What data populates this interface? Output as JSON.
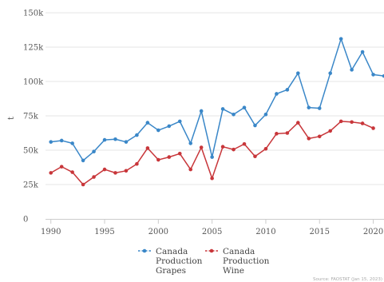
{
  "chart_data": {
    "type": "line",
    "title": "",
    "xlabel": "",
    "ylabel": "t",
    "xlim": [
      1989.5,
      2021
    ],
    "ylim": [
      0,
      150000
    ],
    "grid": true,
    "legend_position": "bottom",
    "x_ticks": [
      1990,
      1995,
      2000,
      2005,
      2010,
      2015,
      2020
    ],
    "y_ticks": [
      0,
      25000,
      50000,
      75000,
      100000,
      125000,
      150000
    ],
    "x_tick_labels": [
      "1990",
      "1995",
      "2000",
      "2005",
      "2010",
      "2015",
      "2020"
    ],
    "y_tick_labels": [
      "0",
      "25k",
      "50k",
      "75k",
      "100k",
      "125k",
      "150k"
    ],
    "x": [
      1990,
      1991,
      1992,
      1993,
      1994,
      1995,
      1996,
      1997,
      1998,
      1999,
      2000,
      2001,
      2002,
      2003,
      2004,
      2005,
      2006,
      2007,
      2008,
      2009,
      2010,
      2011,
      2012,
      2013,
      2014,
      2015,
      2016,
      2017,
      2018,
      2019,
      2020,
      2021
    ],
    "series": [
      {
        "name": "Canada Production Grapes",
        "label_lines": [
          "Canada",
          "Production",
          "Grapes"
        ],
        "color": "#3a87c8",
        "values": [
          56000,
          57000,
          55000,
          42500,
          49000,
          57500,
          58000,
          56000,
          61000,
          70000,
          64500,
          67500,
          71000,
          55000,
          78500,
          45000,
          80000,
          76000,
          81000,
          68000,
          76000,
          91000,
          94000,
          106000,
          81000,
          80500,
          106000,
          131000,
          108500,
          121500,
          105000,
          104000
        ]
      },
      {
        "name": "Canada Production Wine",
        "label_lines": [
          "Canada",
          "Production",
          "Wine"
        ],
        "color": "#c8363a",
        "values": [
          33500,
          38000,
          34000,
          25000,
          30500,
          36000,
          33500,
          35000,
          40000,
          51500,
          43000,
          45000,
          47500,
          36000,
          52000,
          29500,
          52500,
          50500,
          54500,
          45500,
          51000,
          62000,
          62500,
          70000,
          58500,
          60000,
          64000,
          71000,
          70500,
          69500,
          66000,
          null
        ]
      }
    ],
    "source_note": "Source: FAOSTAT (Jan 15, 2023)"
  }
}
